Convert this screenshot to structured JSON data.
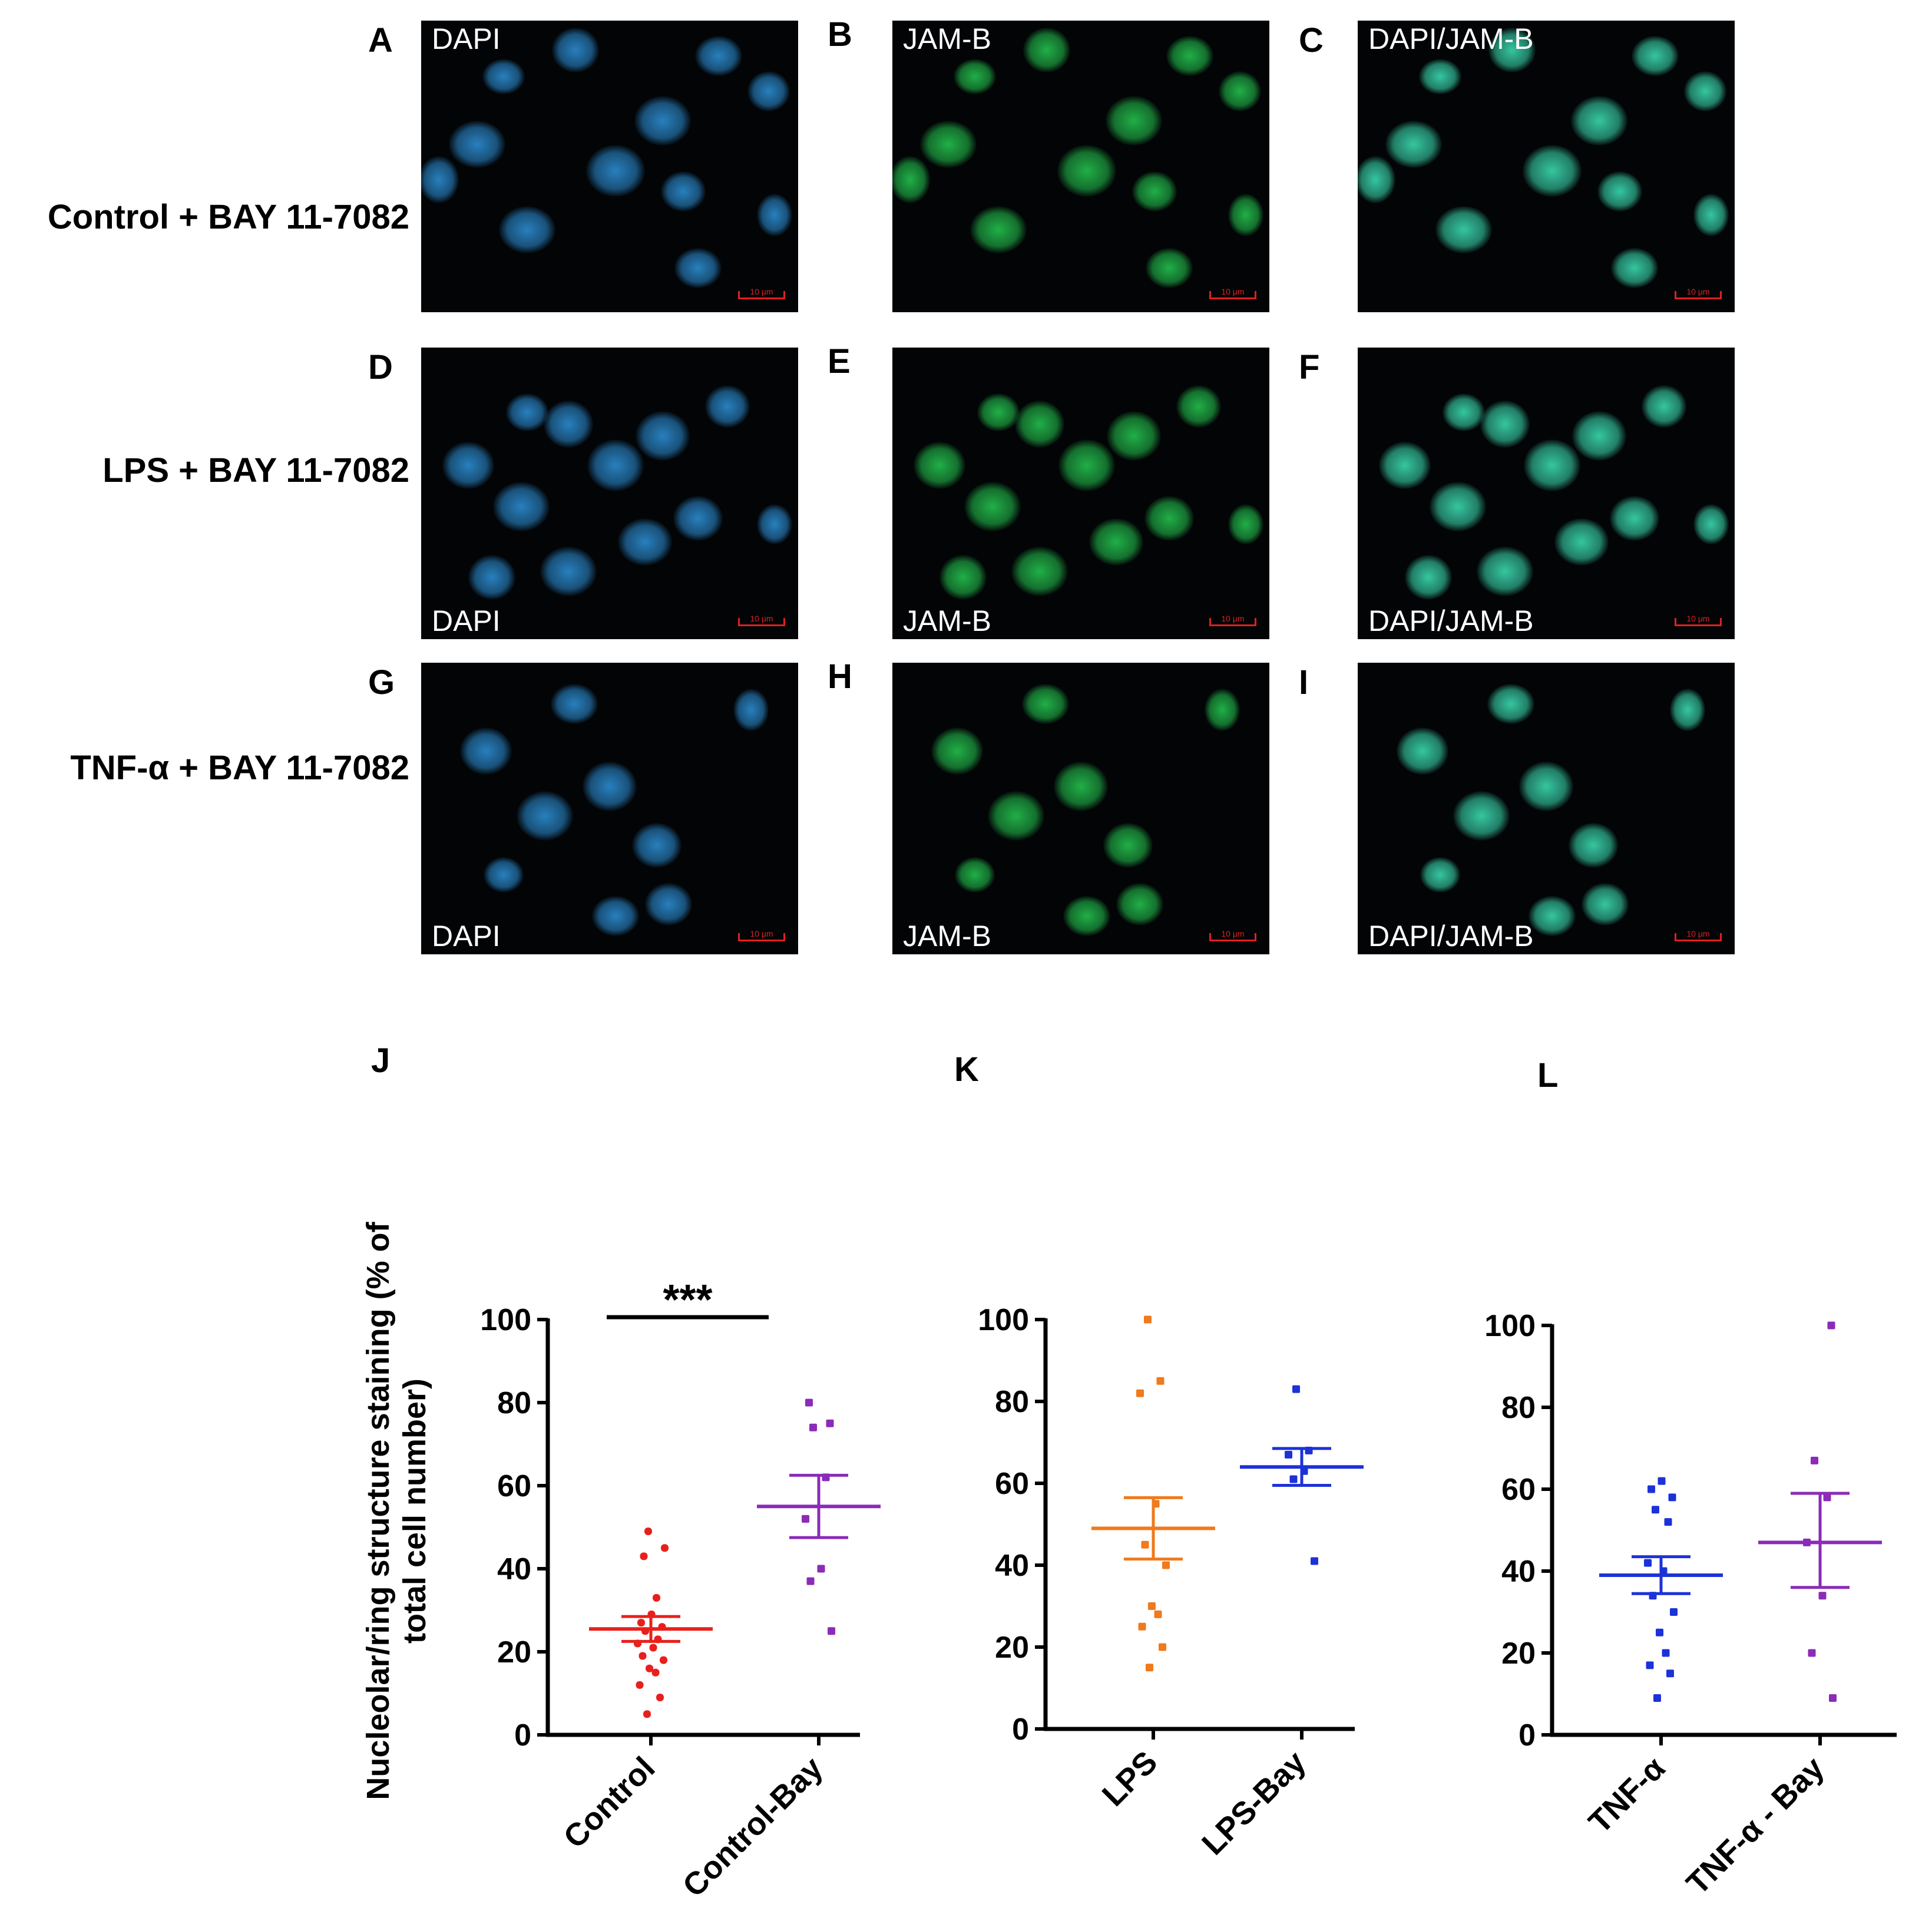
{
  "micrographs": {
    "rows": [
      {
        "label": "Control + BAY 11-7082",
        "panels": [
          {
            "letter": "A",
            "channel": "DAPI",
            "color": "#2a86c8",
            "scale": "10 μm"
          },
          {
            "letter": "B",
            "channel": "JAM-B",
            "color": "#22b84a",
            "scale": "10 μm"
          },
          {
            "letter": "C",
            "channel": "DAPI/JAM-B",
            "color": "#38d0a8",
            "scale": "10 μm"
          }
        ]
      },
      {
        "label": "LPS + BAY 11-7082",
        "panels": [
          {
            "letter": "D",
            "channel": "DAPI",
            "color": "#2a86c8",
            "scale": "10 μm"
          },
          {
            "letter": "E",
            "channel": "JAM-B",
            "color": "#22b84a",
            "scale": "10 μm"
          },
          {
            "letter": "F",
            "channel": "DAPI/JAM-B",
            "color": "#38d0a8",
            "scale": "10 μm"
          }
        ]
      },
      {
        "label": "TNF-α + BAY 11-7082",
        "panels": [
          {
            "letter": "G",
            "channel": "DAPI",
            "color": "#2a86c8",
            "scale": "10 μm"
          },
          {
            "letter": "H",
            "channel": "JAM-B",
            "color": "#22b84a",
            "scale": "10 μm"
          },
          {
            "letter": "I",
            "channel": "DAPI/JAM-B",
            "color": "#38d0a8",
            "scale": "10 μm"
          }
        ]
      }
    ]
  },
  "chart_ylabel": "Nucleolar/ring structure staining (% of total cell number)",
  "chart_data": [
    {
      "panel": "J",
      "type": "scatter",
      "ylim": [
        0,
        100
      ],
      "yticks": [
        0,
        20,
        40,
        60,
        80,
        100
      ],
      "categories": [
        "Control",
        "Control-Bay"
      ],
      "significance": "***",
      "series": [
        {
          "category": "Control",
          "color": "#e8201c",
          "mean": 25.5,
          "sem_low": 22.5,
          "sem_high": 28.5,
          "points": [
            5,
            9,
            12,
            15,
            16,
            18,
            19,
            21,
            22,
            23,
            25,
            26,
            27,
            29,
            33,
            43,
            45,
            49
          ]
        },
        {
          "category": "Control-Bay",
          "color": "#8b2bb8",
          "mean": 55,
          "sem_low": 47.5,
          "sem_high": 62.5,
          "points": [
            25,
            37,
            40,
            52,
            62,
            74,
            75,
            80
          ]
        }
      ]
    },
    {
      "panel": "K",
      "type": "scatter",
      "ylim": [
        0,
        100
      ],
      "yticks": [
        0,
        20,
        40,
        60,
        80,
        100
      ],
      "categories": [
        "LPS",
        "LPS-Bay"
      ],
      "series": [
        {
          "category": "LPS",
          "color": "#f07a1c",
          "mean": 49,
          "sem_low": 41.5,
          "sem_high": 56.5,
          "points": [
            15,
            20,
            25,
            28,
            30,
            40,
            45,
            55,
            82,
            85,
            100
          ]
        },
        {
          "category": "LPS-Bay",
          "color": "#1c32d8",
          "mean": 64,
          "sem_low": 59.5,
          "sem_high": 68.5,
          "points": [
            41,
            61,
            63,
            67,
            68,
            83
          ]
        }
      ]
    },
    {
      "panel": "L",
      "type": "scatter",
      "ylim": [
        0,
        100
      ],
      "yticks": [
        0,
        20,
        40,
        60,
        80,
        100
      ],
      "categories": [
        "TNF-α",
        "TNF-α - Bay"
      ],
      "series": [
        {
          "category": "TNF-α",
          "color": "#1c32d8",
          "mean": 39,
          "sem_low": 34.5,
          "sem_high": 43.5,
          "points": [
            9,
            15,
            17,
            20,
            25,
            30,
            34,
            40,
            42,
            52,
            55,
            58,
            60,
            62
          ]
        },
        {
          "category": "TNF-α - Bay",
          "color": "#8b2bb8",
          "mean": 47,
          "sem_low": 36,
          "sem_high": 59,
          "points": [
            9,
            20,
            34,
            47,
            58,
            67,
            100
          ]
        }
      ]
    }
  ]
}
